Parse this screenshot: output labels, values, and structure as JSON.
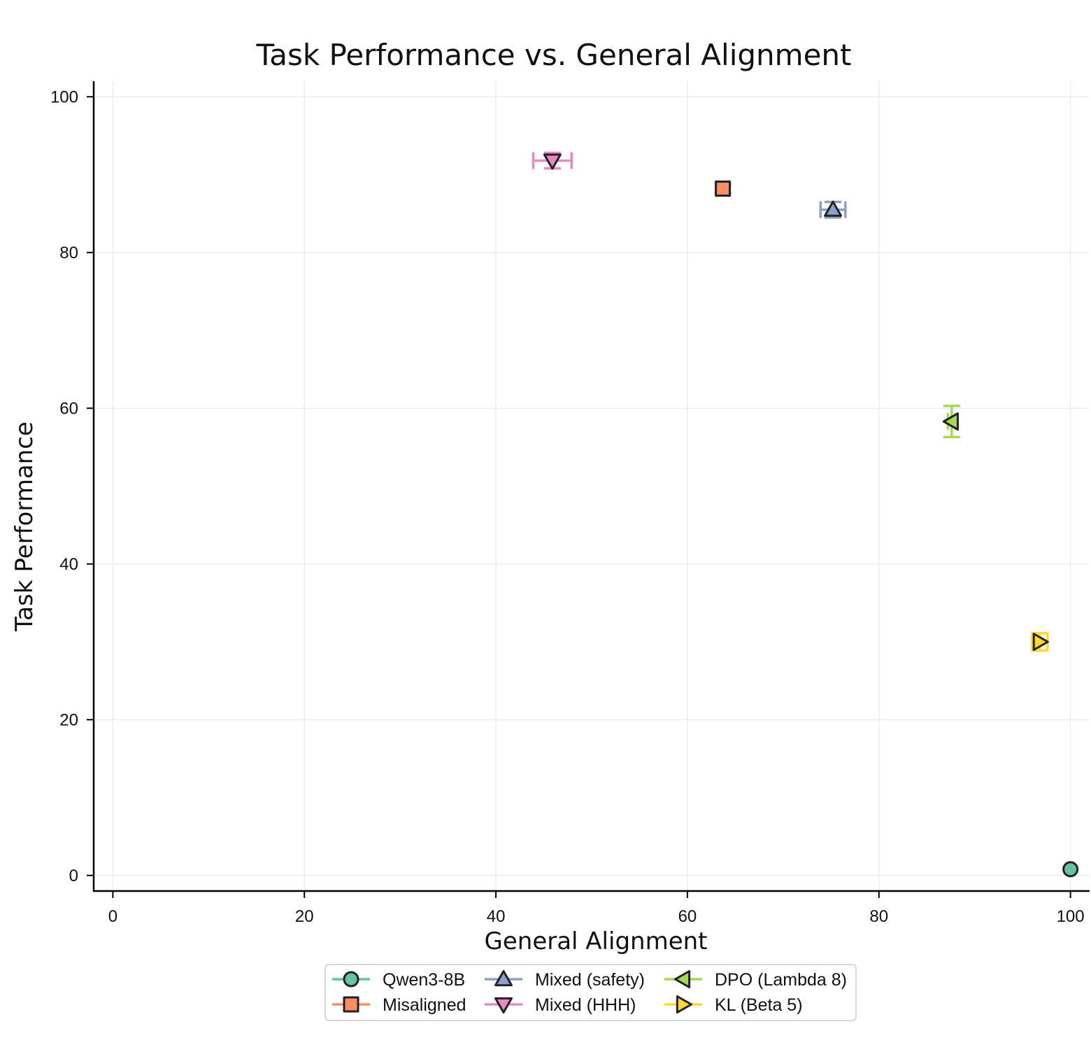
{
  "chart_data": {
    "type": "scatter",
    "title": "Task Performance vs. General Alignment",
    "xlabel": "General Alignment",
    "ylabel": "Task Performance",
    "xlim": [
      -2,
      102
    ],
    "ylim": [
      -2,
      102
    ],
    "xticks": [
      0,
      20,
      40,
      60,
      80,
      100
    ],
    "yticks": [
      0,
      20,
      40,
      60,
      80,
      100
    ],
    "grid": true,
    "legend_position": "bottom-center",
    "series": [
      {
        "name": "Qwen3-8B",
        "marker": "circle",
        "color": "#66c2a5",
        "x": 100,
        "y": 0.8,
        "xerr": 0,
        "yerr": 0
      },
      {
        "name": "Misaligned",
        "marker": "square",
        "color": "#fc8d62",
        "x": 63.7,
        "y": 88.2,
        "xerr": 0.6,
        "yerr": 0.6
      },
      {
        "name": "Mixed (safety)",
        "marker": "triangle-up",
        "color": "#8da0cb",
        "x": 75.2,
        "y": 85.5,
        "xerr": 1.3,
        "yerr": 1.0
      },
      {
        "name": "Mixed (HHH)",
        "marker": "triangle-down",
        "color": "#e78ac3",
        "x": 45.9,
        "y": 91.8,
        "xerr": 2.0,
        "yerr": 1.0
      },
      {
        "name": "DPO (Lambda 8)",
        "marker": "triangle-left",
        "color": "#a6d854",
        "x": 87.6,
        "y": 58.3,
        "xerr": 0.4,
        "yerr": 2.0
      },
      {
        "name": "KL (Beta 5)",
        "marker": "triangle-right",
        "color": "#ffd92f",
        "x": 96.8,
        "y": 30.0,
        "xerr": 0.8,
        "yerr": 1.1
      }
    ]
  }
}
